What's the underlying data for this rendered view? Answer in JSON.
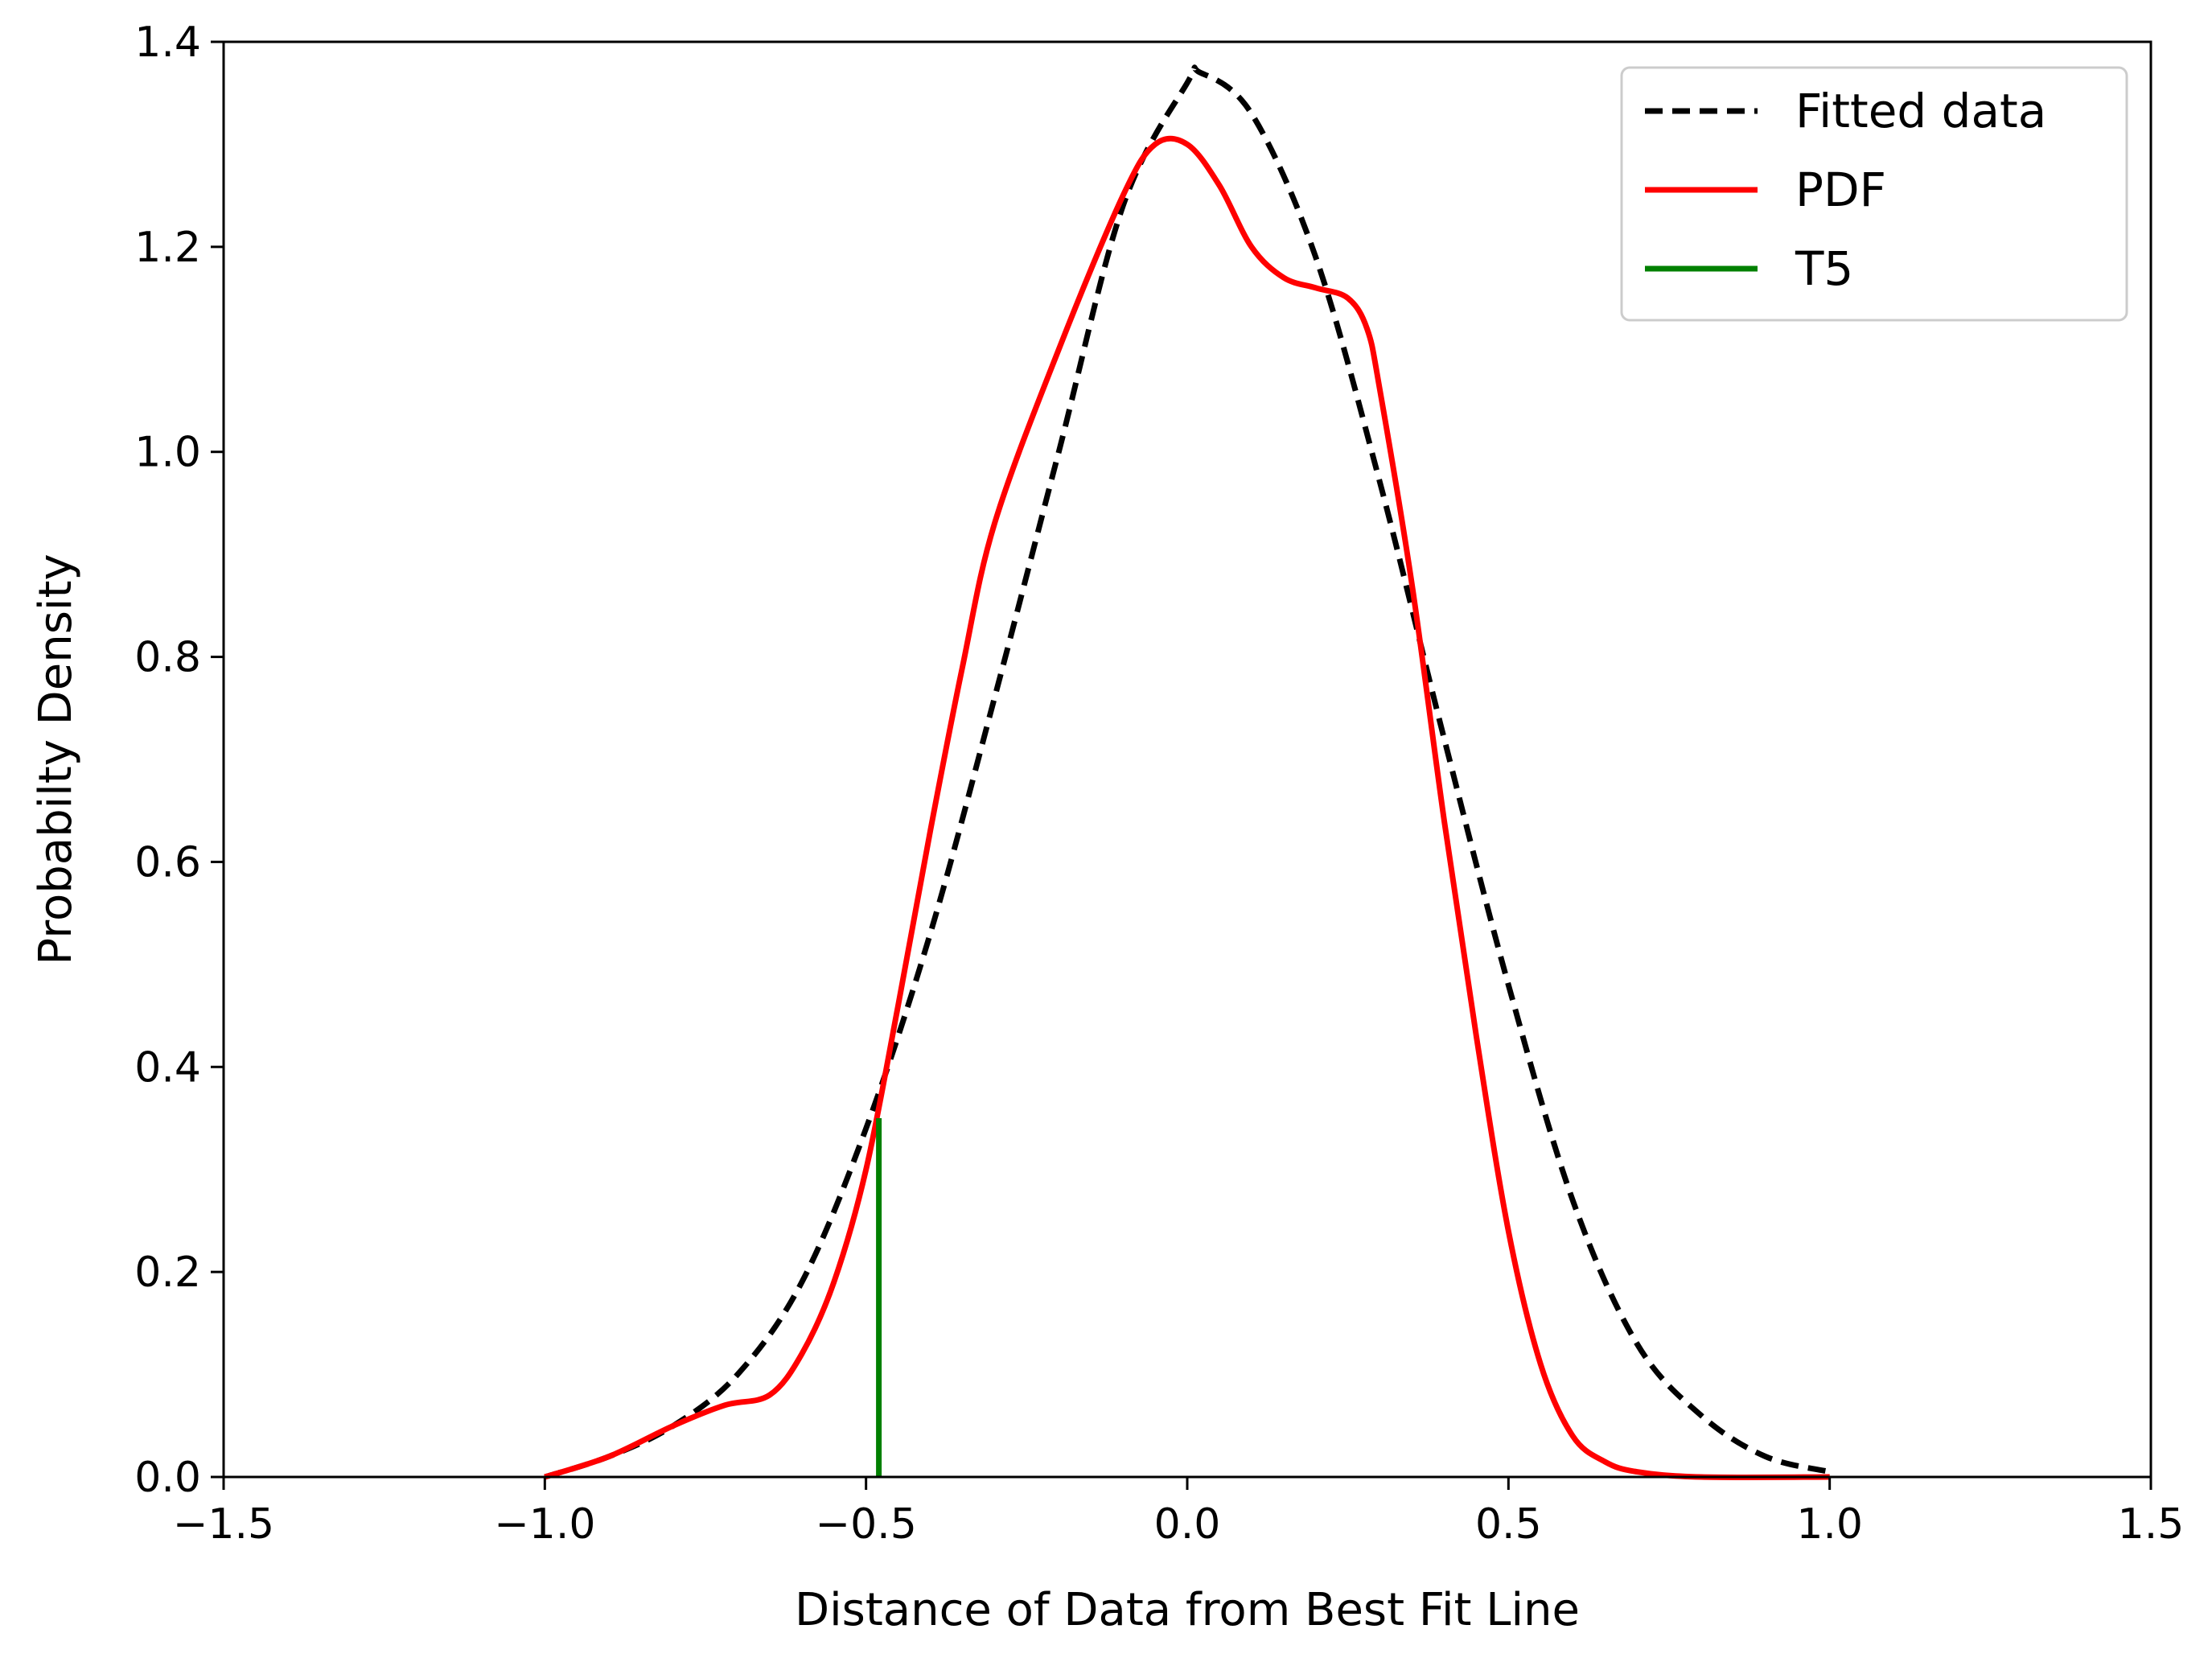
{
  "chart_data": {
    "type": "line",
    "title": "",
    "xlabel": "Distance of Data from Best Fit Line",
    "ylabel": "Probabilty Density",
    "xlim": [
      -1.5,
      1.5
    ],
    "ylim": [
      0.0,
      1.4
    ],
    "xticks": [
      -1.5,
      -1.0,
      -0.5,
      0.0,
      0.5,
      1.0,
      1.5
    ],
    "xtick_labels": [
      "−1.5",
      "−1.0",
      "−0.5",
      "0.0",
      "0.5",
      "1.0",
      "1.5"
    ],
    "yticks": [
      0.0,
      0.2,
      0.4,
      0.6,
      0.8,
      1.0,
      1.2,
      1.4
    ],
    "ytick_labels": [
      "0.0",
      "0.2",
      "0.4",
      "0.6",
      "0.8",
      "1.0",
      "1.2",
      "1.4"
    ],
    "grid": false,
    "legend_position": "top-right",
    "series": [
      {
        "name": "Fitted data",
        "color": "#000000",
        "style": "dashed",
        "x": [
          -1.0,
          -0.9,
          -0.8,
          -0.7,
          -0.6,
          -0.5,
          -0.4,
          -0.3,
          -0.2,
          -0.1,
          0.0,
          0.02,
          0.1,
          0.2,
          0.3,
          0.4,
          0.5,
          0.6,
          0.7,
          0.8,
          0.9,
          1.0
        ],
        "y": [
          0.0,
          0.02,
          0.05,
          0.1,
          0.19,
          0.34,
          0.53,
          0.76,
          1.0,
          1.24,
          1.36,
          1.37,
          1.33,
          1.19,
          0.97,
          0.72,
          0.48,
          0.27,
          0.13,
          0.06,
          0.02,
          0.005
        ]
      },
      {
        "name": "PDF",
        "color": "#ff0000",
        "style": "solid",
        "x": [
          -1.0,
          -0.9,
          -0.8,
          -0.72,
          -0.65,
          -0.6,
          -0.55,
          -0.5,
          -0.45,
          -0.4,
          -0.35,
          -0.3,
          -0.2,
          -0.1,
          -0.05,
          0.0,
          0.05,
          0.1,
          0.15,
          0.2,
          0.25,
          0.28,
          0.3,
          0.35,
          0.4,
          0.45,
          0.5,
          0.55,
          0.6,
          0.65,
          0.7,
          0.8,
          1.0
        ],
        "y": [
          0.0,
          0.02,
          0.05,
          0.07,
          0.08,
          0.12,
          0.19,
          0.3,
          0.46,
          0.63,
          0.79,
          0.93,
          1.1,
          1.25,
          1.3,
          1.3,
          1.26,
          1.2,
          1.17,
          1.16,
          1.15,
          1.12,
          1.06,
          0.87,
          0.64,
          0.43,
          0.24,
          0.11,
          0.04,
          0.015,
          0.005,
          0.0,
          0.0
        ]
      },
      {
        "name": "T5",
        "color": "#008000",
        "style": "solid",
        "x": [
          -0.48,
          -0.48
        ],
        "y": [
          0.0,
          0.35
        ]
      }
    ]
  }
}
